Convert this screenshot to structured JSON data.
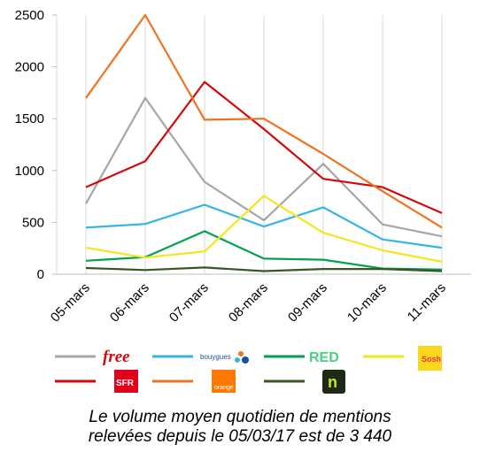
{
  "chart_data": {
    "type": "line",
    "categories": [
      "05-mars",
      "06-mars",
      "07-mars",
      "08-mars",
      "09-mars",
      "10-mars",
      "11-mars"
    ],
    "ylim": [
      0,
      2500
    ],
    "yticks": [
      0,
      500,
      1000,
      1500,
      2000,
      2500
    ],
    "grid": "vertical",
    "legend_position": "bottom",
    "series": [
      {
        "brand": "free",
        "color": "#a6a6a6",
        "values": [
          680,
          1700,
          890,
          520,
          1065,
          480,
          365
        ]
      },
      {
        "brand": "bouygues",
        "color": "#33b5e5",
        "values": [
          450,
          485,
          670,
          460,
          645,
          335,
          255
        ]
      },
      {
        "brand": "red",
        "color": "#00a14f",
        "values": [
          130,
          165,
          415,
          150,
          140,
          55,
          45
        ]
      },
      {
        "brand": "sosh",
        "color": "#f5e61a",
        "values": [
          255,
          160,
          220,
          755,
          400,
          230,
          120
        ]
      },
      {
        "brand": "sfr",
        "color": "#d40a0a",
        "values": [
          840,
          1090,
          1855,
          1400,
          920,
          840,
          590
        ]
      },
      {
        "brand": "orange",
        "color": "#f07320",
        "values": [
          1700,
          2500,
          1490,
          1500,
          1160,
          800,
          450
        ]
      },
      {
        "brand": "nrj",
        "color": "#375623",
        "values": [
          60,
          40,
          65,
          30,
          50,
          50,
          30
        ]
      }
    ]
  },
  "legend": {
    "free": "free",
    "bouygues": "bouygues",
    "red": "RED",
    "sosh": "Sosh",
    "sfr": "SFR",
    "orange": "orange",
    "nrj": "n"
  },
  "caption": {
    "line1": "Le volume moyen quotidien de mentions",
    "line2": "relevées depuis le 05/03/17 est de 3 440"
  }
}
